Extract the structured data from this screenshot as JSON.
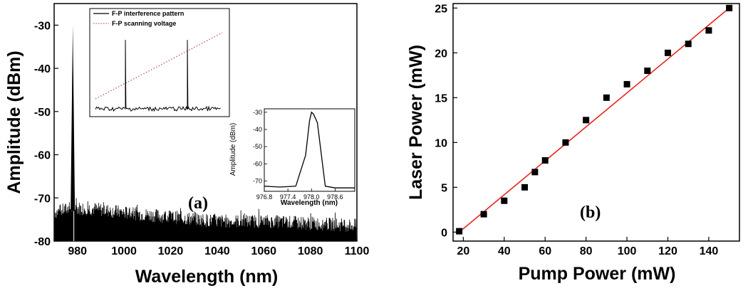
{
  "chart_data": [
    {
      "type": "line",
      "panel_label": "(a)",
      "xlabel": "Wavelength (nm)",
      "ylabel": "Amplitude (dBm)",
      "xlim": [
        970,
        1100
      ],
      "ylim": [
        -80,
        -25
      ],
      "xticks": [
        980,
        1000,
        1020,
        1040,
        1060,
        1080,
        1100
      ],
      "yticks": [
        -80,
        -70,
        -60,
        -50,
        -40,
        -30
      ],
      "series": [
        {
          "x": [
            970,
            977,
            978,
            979,
            985,
            1000,
            1020,
            1040,
            1060,
            1080,
            1100
          ],
          "y": [
            -75,
            -74,
            -30,
            -74,
            -74,
            -75,
            -76,
            -77,
            -77,
            -77.5,
            -78
          ]
        }
      ],
      "inset_interference": {
        "legend": [
          "F-P interference pattern",
          "F-P scanning voltage"
        ]
      },
      "inset_zoom": {
        "xlabel": "Wavelength (nm)",
        "ylabel": "Amplitude (dBm)",
        "xlim": [
          976.8,
          979.1
        ],
        "ylim": [
          -76,
          -28
        ],
        "xticks": [
          "976.8",
          "977.4",
          "978.0",
          "978.6"
        ],
        "yticks": [
          "-30",
          "-40",
          "-50",
          "-60",
          "-70"
        ],
        "x": [
          976.8,
          977.2,
          977.6,
          977.85,
          977.95,
          978.0,
          978.05,
          978.15,
          978.35,
          978.6,
          979.1
        ],
        "y": [
          -73,
          -73.5,
          -73,
          -55,
          -35,
          -30,
          -31,
          -36,
          -73,
          -74,
          -74
        ]
      }
    },
    {
      "type": "scatter",
      "panel_label": "(b)",
      "xlabel": "Pump Power (mW)",
      "ylabel": "Laser Power (mW)",
      "xlim": [
        15,
        155
      ],
      "ylim": [
        -1,
        25.5
      ],
      "xticks": [
        20,
        40,
        60,
        80,
        100,
        120,
        140
      ],
      "yticks": [
        0,
        5,
        10,
        15,
        20,
        25
      ],
      "x": [
        18,
        30,
        40,
        50,
        55,
        60,
        70,
        80,
        90,
        100,
        110,
        120,
        130,
        140,
        150
      ],
      "y": [
        0.1,
        2,
        3.5,
        5,
        6.7,
        8,
        10,
        12.5,
        15,
        16.5,
        18,
        20,
        21,
        22.5,
        25
      ],
      "fit": {
        "x": [
          18,
          150
        ],
        "y": [
          0,
          25
        ]
      },
      "colors": {
        "points": "#000000",
        "fit": "#e8251d"
      }
    }
  ]
}
